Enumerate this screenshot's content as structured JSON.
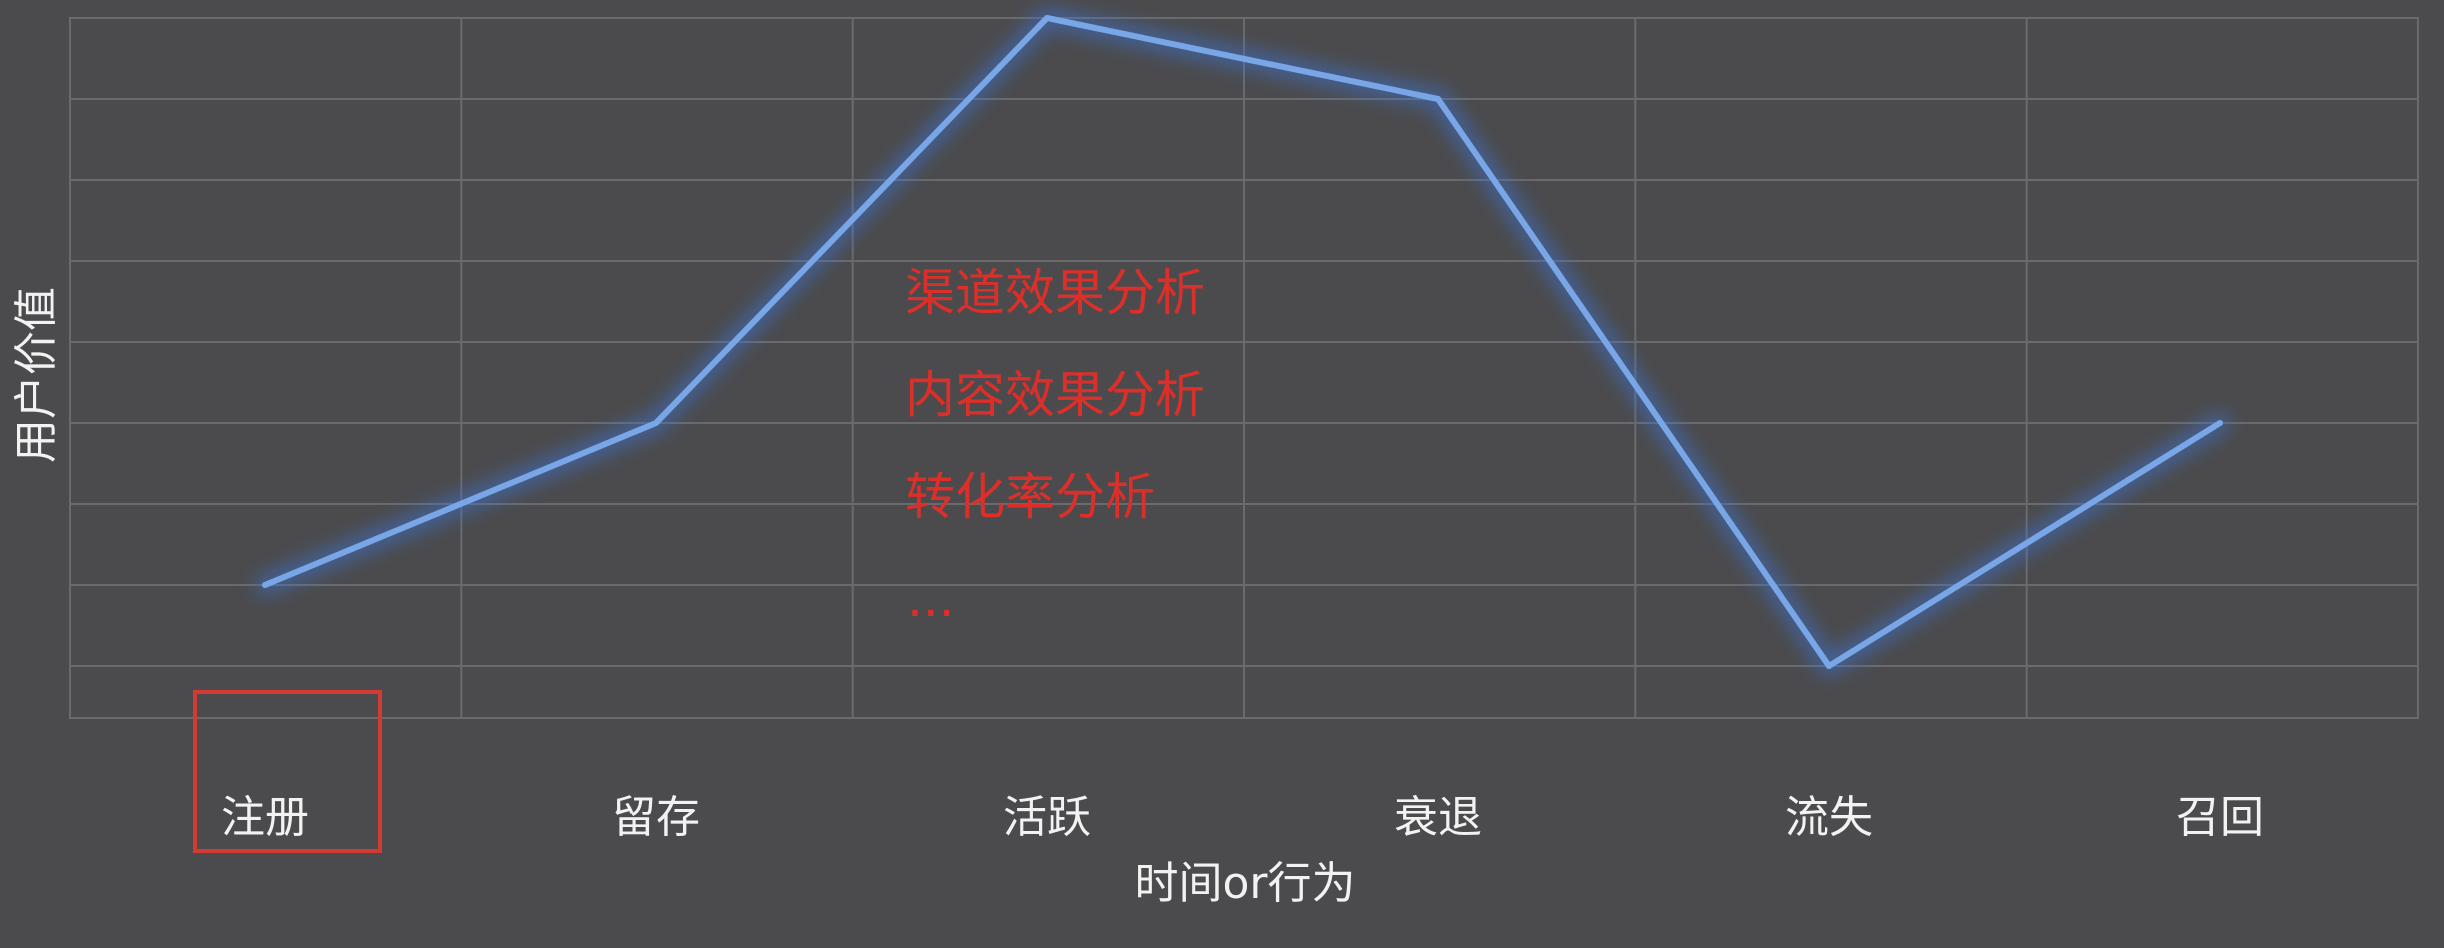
{
  "chart_data": {
    "type": "line",
    "title": "",
    "xlabel": "时间or行为",
    "ylabel": "用户价值",
    "categories": [
      "注册",
      "留存",
      "活跃",
      "衰退",
      "流失",
      "召回"
    ],
    "series": [
      {
        "values": [
          1,
          3,
          8,
          7,
          0,
          3
        ]
      }
    ],
    "ylim": [
      -1,
      8
    ],
    "grid": true,
    "highlighted_category": "注册",
    "annotations": [
      "渠道效果分析",
      "内容效果分析",
      "转化率分析",
      "..."
    ]
  },
  "colors": {
    "background": "#4b4b4d",
    "grid": "#6a6a6c",
    "line": "#78a6e6",
    "line_glow": "#3d74d8",
    "annotation": "#dc2f2a",
    "highlight_box": "#d33a33",
    "label": "#f2f2f2"
  }
}
